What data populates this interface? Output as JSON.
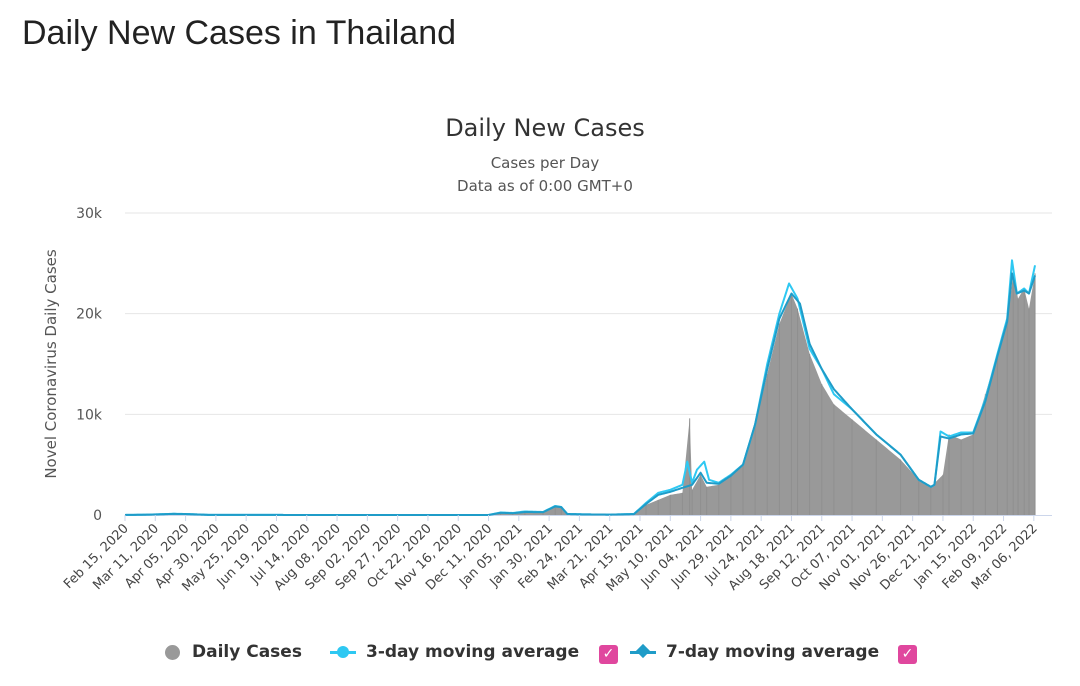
{
  "page": {
    "heading": "Daily New Cases in Thailand"
  },
  "colors": {
    "bars": "#999999",
    "ma3": "#2ec8f2",
    "ma7": "#1f9cc8",
    "checkbox": "#e0479e",
    "grid": "#e6e6e6"
  },
  "legend": {
    "daily": "Daily Cases",
    "ma3": "3-day moving average",
    "ma7": "7-day moving average",
    "check": "✓"
  },
  "chart_data": {
    "type": "area",
    "title": "Daily New Cases",
    "subtitle_1": "Cases per Day",
    "subtitle_2": "Data as of 0:00 GMT+0",
    "ylabel": "Novel Coronavirus Daily Cases",
    "ylim": [
      0,
      30000
    ],
    "yticks": [
      0,
      10000,
      20000,
      30000
    ],
    "ytick_labels": [
      "0",
      "10k",
      "20k",
      "30k"
    ],
    "x_labels": [
      "Feb 15, 2020",
      "Mar 11, 2020",
      "Apr 05, 2020",
      "Apr 30, 2020",
      "May 25, 2020",
      "Jun 19, 2020",
      "Jul 14, 2020",
      "Aug 08, 2020",
      "Sep 02, 2020",
      "Sep 27, 2020",
      "Oct 22, 2020",
      "Nov 16, 2020",
      "Dec 11, 2020",
      "Jan 05, 2021",
      "Jan 30, 2021",
      "Feb 24, 2021",
      "Mar 21, 2021",
      "Apr 15, 2021",
      "May 10, 2021",
      "Jun 04, 2021",
      "Jun 29, 2021",
      "Jul 24, 2021",
      "Aug 18, 2021",
      "Sep 12, 2021",
      "Oct 07, 2021",
      "Nov 01, 2021",
      "Nov 26, 2021",
      "Dec 21, 2021",
      "Jan 15, 2022",
      "Feb 09, 2022",
      "Mar 06, 2022"
    ],
    "x_label_day": [
      0,
      25,
      50,
      75,
      100,
      125,
      150,
      175,
      200,
      225,
      250,
      275,
      300,
      325,
      350,
      375,
      400,
      425,
      450,
      475,
      500,
      525,
      550,
      575,
      600,
      625,
      650,
      675,
      700,
      725,
      750
    ],
    "x_max_day": 765,
    "grid": true,
    "series": [
      {
        "name": "Daily Cases",
        "points": [
          [
            0,
            5
          ],
          [
            20,
            40
          ],
          [
            40,
            120
          ],
          [
            50,
            90
          ],
          [
            70,
            10
          ],
          [
            150,
            5
          ],
          [
            300,
            5
          ],
          [
            310,
            200
          ],
          [
            320,
            150
          ],
          [
            330,
            300
          ],
          [
            345,
            280
          ],
          [
            355,
            800
          ],
          [
            360,
            700
          ],
          [
            365,
            100
          ],
          [
            380,
            60
          ],
          [
            400,
            40
          ],
          [
            420,
            80
          ],
          [
            430,
            1000
          ],
          [
            440,
            1500
          ],
          [
            450,
            2000
          ],
          [
            460,
            2200
          ],
          [
            466,
            9600
          ],
          [
            468,
            2500
          ],
          [
            475,
            4000
          ],
          [
            480,
            2800
          ],
          [
            490,
            3000
          ],
          [
            500,
            4000
          ],
          [
            510,
            5000
          ],
          [
            520,
            9000
          ],
          [
            530,
            14000
          ],
          [
            540,
            19000
          ],
          [
            550,
            22000
          ],
          [
            555,
            20500
          ],
          [
            565,
            16000
          ],
          [
            575,
            13000
          ],
          [
            585,
            11000
          ],
          [
            600,
            9500
          ],
          [
            620,
            7500
          ],
          [
            640,
            5500
          ],
          [
            655,
            3500
          ],
          [
            665,
            2800
          ],
          [
            675,
            4000
          ],
          [
            680,
            8000
          ],
          [
            690,
            7500
          ],
          [
            700,
            8000
          ],
          [
            710,
            12000
          ],
          [
            720,
            16000
          ],
          [
            728,
            19000
          ],
          [
            733,
            24000
          ],
          [
            737,
            21500
          ],
          [
            742,
            22500
          ],
          [
            746,
            20500
          ],
          [
            751,
            24000
          ]
        ]
      },
      {
        "name": "3-day moving average",
        "points": [
          [
            0,
            5
          ],
          [
            20,
            40
          ],
          [
            40,
            120
          ],
          [
            50,
            100
          ],
          [
            70,
            10
          ],
          [
            150,
            5
          ],
          [
            300,
            5
          ],
          [
            310,
            250
          ],
          [
            320,
            200
          ],
          [
            330,
            350
          ],
          [
            345,
            300
          ],
          [
            355,
            900
          ],
          [
            360,
            800
          ],
          [
            365,
            100
          ],
          [
            380,
            60
          ],
          [
            400,
            40
          ],
          [
            420,
            100
          ],
          [
            430,
            1200
          ],
          [
            440,
            2200
          ],
          [
            450,
            2500
          ],
          [
            460,
            3000
          ],
          [
            464,
            5300
          ],
          [
            468,
            3200
          ],
          [
            472,
            4500
          ],
          [
            478,
            5300
          ],
          [
            482,
            3500
          ],
          [
            490,
            3200
          ],
          [
            500,
            4000
          ],
          [
            510,
            5000
          ],
          [
            520,
            9000
          ],
          [
            530,
            15000
          ],
          [
            540,
            20000
          ],
          [
            548,
            23000
          ],
          [
            555,
            21500
          ],
          [
            565,
            16500
          ],
          [
            575,
            14500
          ],
          [
            585,
            12000
          ],
          [
            600,
            10500
          ],
          [
            620,
            8000
          ],
          [
            640,
            6000
          ],
          [
            655,
            3500
          ],
          [
            665,
            2800
          ],
          [
            668,
            3000
          ],
          [
            673,
            8300
          ],
          [
            680,
            7800
          ],
          [
            690,
            8200
          ],
          [
            700,
            8200
          ],
          [
            710,
            11500
          ],
          [
            720,
            16000
          ],
          [
            728,
            19500
          ],
          [
            732,
            25300
          ],
          [
            736,
            22000
          ],
          [
            742,
            22500
          ],
          [
            746,
            22000
          ],
          [
            751,
            24800
          ]
        ]
      },
      {
        "name": "7-day moving average",
        "points": [
          [
            0,
            5
          ],
          [
            20,
            35
          ],
          [
            40,
            110
          ],
          [
            50,
            95
          ],
          [
            70,
            10
          ],
          [
            150,
            5
          ],
          [
            300,
            5
          ],
          [
            310,
            220
          ],
          [
            320,
            180
          ],
          [
            330,
            300
          ],
          [
            345,
            280
          ],
          [
            355,
            850
          ],
          [
            360,
            780
          ],
          [
            365,
            100
          ],
          [
            380,
            60
          ],
          [
            400,
            40
          ],
          [
            420,
            90
          ],
          [
            430,
            1100
          ],
          [
            440,
            2000
          ],
          [
            450,
            2300
          ],
          [
            460,
            2700
          ],
          [
            468,
            3000
          ],
          [
            475,
            4200
          ],
          [
            480,
            3200
          ],
          [
            490,
            3100
          ],
          [
            500,
            3900
          ],
          [
            510,
            5000
          ],
          [
            520,
            9000
          ],
          [
            530,
            14500
          ],
          [
            540,
            19500
          ],
          [
            550,
            22000
          ],
          [
            557,
            21000
          ],
          [
            565,
            17000
          ],
          [
            575,
            14500
          ],
          [
            585,
            12500
          ],
          [
            600,
            10500
          ],
          [
            620,
            8000
          ],
          [
            640,
            6000
          ],
          [
            655,
            3500
          ],
          [
            665,
            2800
          ],
          [
            668,
            3000
          ],
          [
            673,
            7800
          ],
          [
            680,
            7600
          ],
          [
            690,
            8000
          ],
          [
            700,
            8100
          ],
          [
            710,
            11300
          ],
          [
            720,
            15800
          ],
          [
            728,
            19200
          ],
          [
            732,
            24000
          ],
          [
            736,
            22000
          ],
          [
            742,
            22300
          ],
          [
            746,
            22000
          ],
          [
            751,
            23800
          ]
        ]
      }
    ]
  }
}
